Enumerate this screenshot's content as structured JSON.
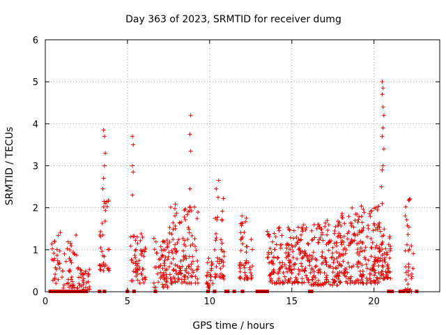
{
  "chart_data": {
    "type": "scatter",
    "title": "Day 363 of 2023, SRMTID for receiver dumg",
    "xlabel": "GPS time / hours",
    "ylabel": "SRMTID / TECUs",
    "xlim": [
      0,
      24
    ],
    "ylim": [
      0,
      6
    ],
    "x_ticks": [
      0,
      5,
      10,
      15,
      20
    ],
    "x_tick_labels": [
      "0",
      "5",
      "10",
      "15",
      "20"
    ],
    "y_ticks": [
      0,
      1,
      2,
      3,
      4,
      5,
      6
    ],
    "y_tick_labels": [
      "0",
      "1",
      "2",
      "3",
      "4",
      "5",
      "6"
    ],
    "grid": true,
    "marker": "+",
    "color": "#e00000",
    "clusters": [
      {
        "x0": 0.4,
        "x1": 1.0,
        "ymin": 0.2,
        "ymax": 1.6,
        "n": 26
      },
      {
        "x0": 1.0,
        "x1": 2.0,
        "ymin": 0.05,
        "ymax": 1.35,
        "n": 40
      },
      {
        "x0": 2.0,
        "x1": 2.7,
        "ymin": 0.05,
        "ymax": 0.7,
        "n": 30
      },
      {
        "x0": 3.3,
        "x1": 3.9,
        "ymin": 0.5,
        "ymax": 2.2,
        "n": 34
      },
      {
        "x0": 5.2,
        "x1": 6.1,
        "ymin": 0.2,
        "ymax": 1.5,
        "n": 55
      },
      {
        "x0": 6.6,
        "x1": 7.5,
        "ymin": 0.1,
        "ymax": 1.3,
        "n": 60
      },
      {
        "x0": 7.5,
        "x1": 9.3,
        "ymin": 0.2,
        "ymax": 2.1,
        "n": 130
      },
      {
        "x0": 9.8,
        "x1": 10.2,
        "ymin": 0.1,
        "ymax": 0.9,
        "n": 22
      },
      {
        "x0": 10.3,
        "x1": 10.9,
        "ymin": 0.3,
        "ymax": 2.3,
        "n": 40
      },
      {
        "x0": 11.8,
        "x1": 12.6,
        "ymin": 0.3,
        "ymax": 1.85,
        "n": 50
      },
      {
        "x0": 13.5,
        "x1": 16.1,
        "ymin": 0.2,
        "ymax": 1.6,
        "n": 190
      },
      {
        "x0": 16.1,
        "x1": 18.0,
        "ymin": 0.15,
        "ymax": 1.7,
        "n": 150
      },
      {
        "x0": 18.0,
        "x1": 20.4,
        "ymin": 0.2,
        "ymax": 2.05,
        "n": 200
      },
      {
        "x0": 20.4,
        "x1": 21.0,
        "ymin": 0.3,
        "ymax": 1.5,
        "n": 50
      },
      {
        "x0": 21.9,
        "x1": 22.4,
        "ymin": 0.0,
        "ymax": 2.3,
        "n": 35
      }
    ],
    "outliers": [
      {
        "x": 3.55,
        "y": 3.85
      },
      {
        "x": 3.6,
        "y": 3.7
      },
      {
        "x": 3.65,
        "y": 3.3
      },
      {
        "x": 3.6,
        "y": 3.0
      },
      {
        "x": 3.55,
        "y": 2.7
      },
      {
        "x": 3.5,
        "y": 2.45
      },
      {
        "x": 3.65,
        "y": 2.1
      },
      {
        "x": 5.3,
        "y": 3.7
      },
      {
        "x": 5.35,
        "y": 3.5
      },
      {
        "x": 5.3,
        "y": 3.0
      },
      {
        "x": 5.35,
        "y": 2.85
      },
      {
        "x": 5.3,
        "y": 2.3
      },
      {
        "x": 8.85,
        "y": 4.2
      },
      {
        "x": 8.8,
        "y": 3.75
      },
      {
        "x": 8.85,
        "y": 3.35
      },
      {
        "x": 8.8,
        "y": 2.45
      },
      {
        "x": 10.4,
        "y": 2.45
      },
      {
        "x": 10.55,
        "y": 2.65
      },
      {
        "x": 20.5,
        "y": 5.0
      },
      {
        "x": 20.55,
        "y": 4.85
      },
      {
        "x": 20.5,
        "y": 4.7
      },
      {
        "x": 20.55,
        "y": 4.4
      },
      {
        "x": 20.6,
        "y": 4.2
      },
      {
        "x": 20.55,
        "y": 3.9
      },
      {
        "x": 20.5,
        "y": 3.7
      },
      {
        "x": 20.6,
        "y": 3.4
      },
      {
        "x": 20.55,
        "y": 3.0
      },
      {
        "x": 20.5,
        "y": 2.9
      },
      {
        "x": 20.45,
        "y": 2.5
      },
      {
        "x": 20.5,
        "y": 2.1
      }
    ],
    "zero_points": [
      0.3,
      0.5,
      0.7,
      0.9,
      1.1,
      1.3,
      1.5,
      1.7,
      1.9,
      2.1,
      2.3,
      2.5,
      3.3,
      3.6,
      5.0,
      5.4,
      6.7,
      9.9,
      10.3,
      11.0,
      11.1,
      11.5,
      12.0,
      12.9,
      13.1,
      13.3,
      13.5,
      16.1,
      16.2,
      20.9,
      21.1,
      21.6,
      21.8,
      22.1,
      22.6
    ]
  }
}
